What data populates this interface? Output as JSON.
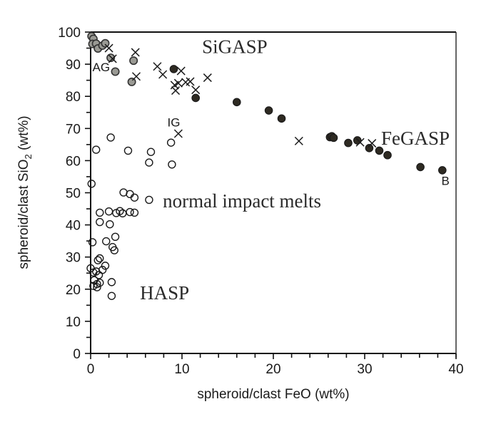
{
  "chart_data": {
    "type": "scatter",
    "title": "",
    "xlabel": "spheroid/clast FeO (wt%)",
    "ylabel_parts": [
      "spheroid/clast SiO",
      "2",
      " (wt%)"
    ],
    "ylabel": "spheroid/clast SiO2 (wt%)",
    "xlim": [
      0,
      40
    ],
    "ylim": [
      0,
      100
    ],
    "x_major_ticks": [
      0,
      10,
      20,
      30,
      40
    ],
    "x_minor_step": 2,
    "y_major_ticks": [
      0,
      10,
      20,
      30,
      40,
      50,
      60,
      70,
      80,
      90,
      100
    ],
    "y_minor_step": 5,
    "grid": false,
    "legend": "none",
    "colors": {
      "dark_fill": "#2e2a22",
      "gray_fill": "#9a9a94",
      "marker_stroke": "#1a1a1a"
    },
    "series": [
      {
        "name": "dark-filled",
        "marker": "filled-circle-dark",
        "points": [
          [
            9.1,
            88.5
          ],
          [
            11.5,
            79.5
          ],
          [
            16.0,
            78.2
          ],
          [
            19.5,
            75.6
          ],
          [
            20.9,
            73.1
          ],
          [
            26.2,
            67.3
          ],
          [
            26.4,
            67.6
          ],
          [
            26.6,
            67.1
          ],
          [
            28.2,
            65.5
          ],
          [
            29.2,
            66.3
          ],
          [
            30.5,
            63.9
          ],
          [
            31.6,
            63.1
          ],
          [
            32.5,
            61.7
          ],
          [
            36.1,
            58.0
          ],
          [
            38.5,
            57.0
          ]
        ]
      },
      {
        "name": "gray-filled",
        "marker": "filled-circle-gray",
        "points": [
          [
            0.1,
            98.7
          ],
          [
            0.3,
            97.9
          ],
          [
            0.2,
            96.3
          ],
          [
            0.6,
            96.4
          ],
          [
            0.8,
            94.9
          ],
          [
            1.3,
            95.8
          ],
          [
            1.6,
            96.5
          ],
          [
            2.2,
            92.0
          ],
          [
            2.7,
            87.7
          ],
          [
            4.7,
            91.1
          ],
          [
            4.5,
            84.5
          ]
        ]
      },
      {
        "name": "crosses",
        "marker": "x",
        "points": [
          [
            2.0,
            95.0
          ],
          [
            2.4,
            91.7
          ],
          [
            4.9,
            93.7
          ],
          [
            5.0,
            86.2
          ],
          [
            7.3,
            89.3
          ],
          [
            7.9,
            86.8
          ],
          [
            9.2,
            83.5
          ],
          [
            9.3,
            81.8
          ],
          [
            9.6,
            84.1
          ],
          [
            9.9,
            87.9
          ],
          [
            10.4,
            84.4
          ],
          [
            10.9,
            84.6
          ],
          [
            11.5,
            82.0
          ],
          [
            12.8,
            85.8
          ],
          [
            9.6,
            68.4
          ],
          [
            22.8,
            66.1
          ],
          [
            29.5,
            65.7
          ],
          [
            30.8,
            65.4
          ]
        ]
      },
      {
        "name": "open-circles",
        "marker": "open-circle",
        "points": [
          [
            2.2,
            67.2
          ],
          [
            0.6,
            63.4
          ],
          [
            4.1,
            63.1
          ],
          [
            6.6,
            62.7
          ],
          [
            6.4,
            59.4
          ],
          [
            8.8,
            65.6
          ],
          [
            8.9,
            58.8
          ],
          [
            0.1,
            52.8
          ],
          [
            3.6,
            50.1
          ],
          [
            4.3,
            49.6
          ],
          [
            4.8,
            48.5
          ],
          [
            6.4,
            47.8
          ],
          [
            1.0,
            43.8
          ],
          [
            2.0,
            44.2
          ],
          [
            2.8,
            43.7
          ],
          [
            3.2,
            44.3
          ],
          [
            3.5,
            43.6
          ],
          [
            4.3,
            44.0
          ],
          [
            4.8,
            43.8
          ],
          [
            1.0,
            40.9
          ],
          [
            2.1,
            40.2
          ],
          [
            0.2,
            34.6
          ],
          [
            1.7,
            34.9
          ],
          [
            2.7,
            36.3
          ],
          [
            2.6,
            32.1
          ],
          [
            2.4,
            33.1
          ],
          [
            1.0,
            29.6
          ],
          [
            0.8,
            29.0
          ],
          [
            1.6,
            27.3
          ],
          [
            0.0,
            26.5
          ],
          [
            1.3,
            26.0
          ],
          [
            0.3,
            25.2
          ],
          [
            0.6,
            25.5
          ],
          [
            0.9,
            24.4
          ],
          [
            0.4,
            22.8
          ],
          [
            0.7,
            21.6
          ],
          [
            1.0,
            22.0
          ],
          [
            0.3,
            21.0
          ],
          [
            0.7,
            20.6
          ],
          [
            2.3,
            22.2
          ],
          [
            2.3,
            17.9
          ]
        ]
      }
    ],
    "annotations": [
      {
        "id": "sigasp",
        "text": "SiGASP",
        "x": 12.2,
        "y": 93.5,
        "style": "group"
      },
      {
        "id": "fegasp",
        "text": "FeGASP",
        "x": 31.8,
        "y": 65.0,
        "style": "group"
      },
      {
        "id": "normal-impact-melts",
        "text": "normal impact melts",
        "x": 7.9,
        "y": 45.5,
        "style": "group"
      },
      {
        "id": "hasp",
        "text": "HASP",
        "x": 5.4,
        "y": 16.8,
        "style": "group"
      },
      {
        "id": "ag",
        "text": "AG",
        "x": 0.2,
        "y": 87.8,
        "style": "point"
      },
      {
        "id": "ig",
        "text": "IG",
        "x": 8.4,
        "y": 70.6,
        "style": "point"
      },
      {
        "id": "b",
        "text": "B",
        "x": 38.4,
        "y": 52.4,
        "style": "point"
      }
    ]
  }
}
